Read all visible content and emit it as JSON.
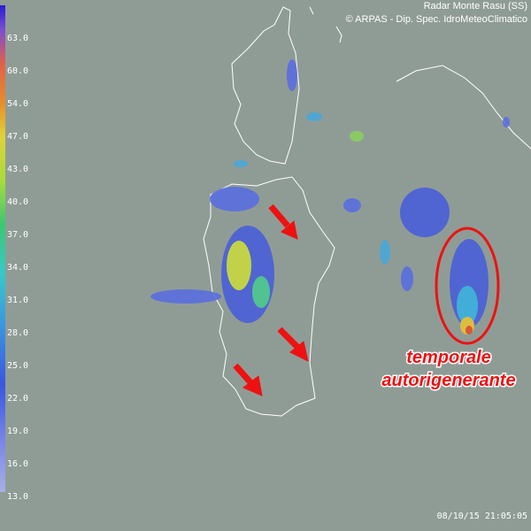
{
  "header": {
    "station": "Radar Monte Rasu (SS)",
    "credit": "© ARPAS - Dip. Spec. IdroMeteoClimatico"
  },
  "scale": {
    "labels": [
      "63.0",
      "60.0",
      "54.0",
      "47.0",
      "43.0",
      "40.0",
      "37.0",
      "34.0",
      "31.0",
      "28.0",
      "25.0",
      "22.0",
      "19.0",
      "16.0",
      "13.0"
    ]
  },
  "annotation": {
    "line1": "temporale",
    "line2": "autorigenerante"
  },
  "timestamp": "08/10/15 21:05:05"
}
